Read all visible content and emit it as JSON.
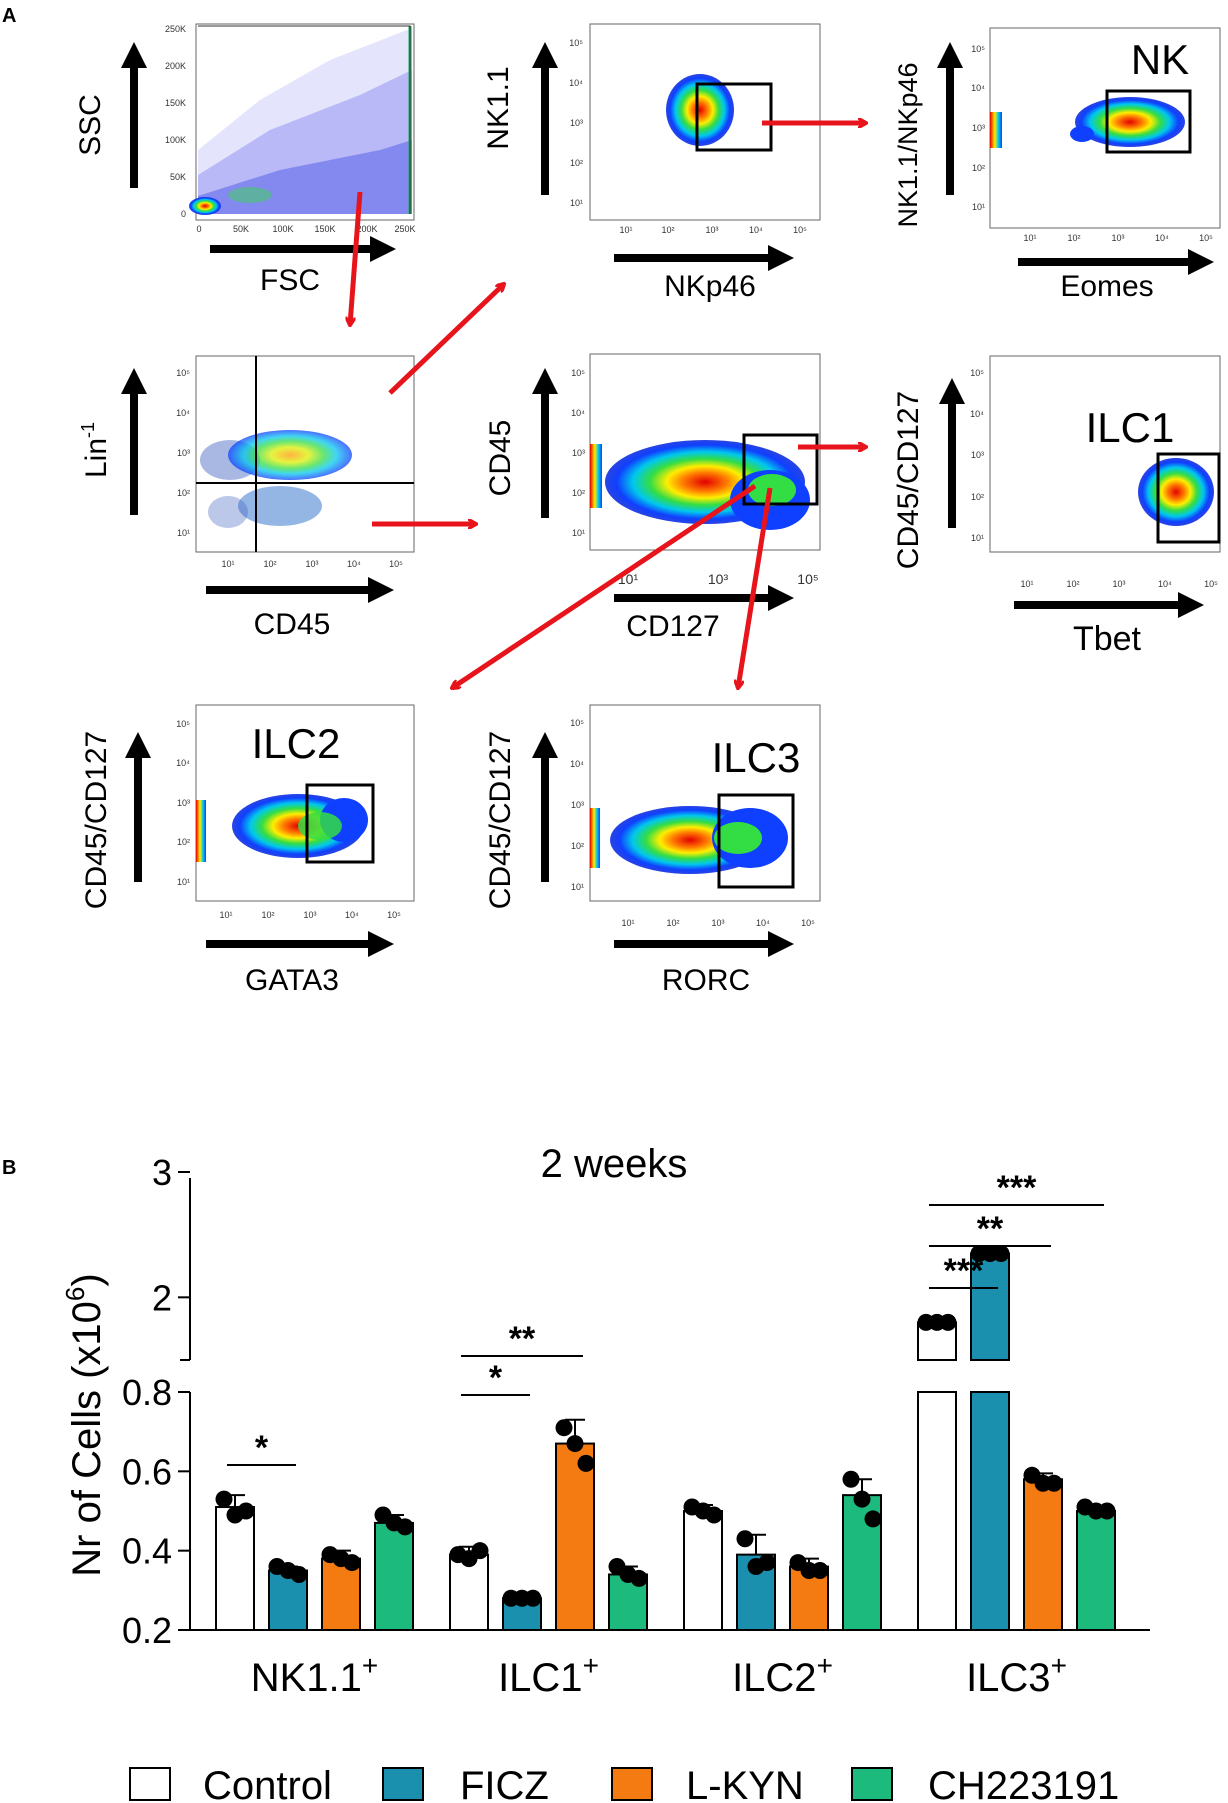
{
  "panel_a": {
    "label": "A",
    "plots": [
      {
        "id": "fsc-ssc",
        "x_label": "FSC",
        "y_label": "SSC",
        "gate_label": "",
        "x_ticks": [
          "0",
          "50K",
          "100K",
          "150K",
          "200K",
          "250K"
        ],
        "y_ticks": [
          "0",
          "50K",
          "100K",
          "150K",
          "200K",
          "250K"
        ]
      },
      {
        "id": "nk11-nkp46",
        "x_label": "NKp46",
        "y_label": "NK1.1",
        "gate_label": "",
        "x_ticks": [
          "10¹",
          "10²",
          "10³",
          "10⁴",
          "10⁵"
        ],
        "y_ticks": [
          "10¹",
          "10²",
          "10³",
          "10⁴",
          "10⁵"
        ]
      },
      {
        "id": "nk",
        "x_label": "Eomes",
        "y_label": "NK1.1/NKp46",
        "gate_label": "NK",
        "x_ticks": [
          "10¹",
          "10²",
          "10³",
          "10⁴",
          "10⁵"
        ],
        "y_ticks": [
          "10¹",
          "10²",
          "10³",
          "10⁴",
          "10⁵"
        ]
      },
      {
        "id": "lin-cd45",
        "x_label": "CD45",
        "y_label": "Lin",
        "y_label_sup": "-1",
        "gate_label": "",
        "x_ticks": [
          "10¹",
          "10²",
          "10³",
          "10⁴",
          "10⁵"
        ],
        "y_ticks": [
          "10¹",
          "10²",
          "10³",
          "10⁴",
          "10⁵"
        ]
      },
      {
        "id": "cd45-cd127",
        "x_label": "CD127",
        "y_label": "CD45",
        "gate_label": "",
        "x_ticks": [
          "10¹",
          "10³",
          "10⁵"
        ],
        "y_ticks": [
          "10¹",
          "10²",
          "10³",
          "10⁴",
          "10⁵"
        ]
      },
      {
        "id": "ilc1",
        "x_label": "Tbet",
        "y_label": "CD45/CD127",
        "gate_label": "ILC1",
        "x_ticks": [
          "10¹",
          "10²",
          "10³",
          "10⁴",
          "10⁵"
        ],
        "y_ticks": [
          "10¹",
          "10²",
          "10³",
          "10⁴",
          "10⁵"
        ]
      },
      {
        "id": "ilc2",
        "x_label": "GATA3",
        "y_label": "CD45/CD127",
        "gate_label": "ILC2",
        "x_ticks": [
          "10¹",
          "10²",
          "10³",
          "10⁴",
          "10⁵"
        ],
        "y_ticks": [
          "10¹",
          "10²",
          "10³",
          "10⁴",
          "10⁵"
        ]
      },
      {
        "id": "ilc3",
        "x_label": "RORC",
        "y_label": "CD45/CD127",
        "gate_label": "ILC3",
        "x_ticks": [
          "10¹",
          "10²",
          "10³",
          "10⁴",
          "10⁵"
        ],
        "y_ticks": [
          "10¹",
          "10²",
          "10³",
          "10⁴",
          "10⁵"
        ]
      }
    ]
  },
  "panel_b": {
    "label": "B"
  },
  "colors": {
    "control": "#ffffff",
    "ficz": "#1a8fae",
    "lkyn": "#f47a12",
    "ch223191": "#1dba7e",
    "arrow": "#e8141b"
  },
  "chart_data": {
    "type": "bar",
    "title": "2 weeks",
    "xlabel": "",
    "ylabel": "Nr of Cells (x10",
    "ylabel_sup": "6",
    "ylabel_end": ")",
    "ylim_lower": [
      0.2,
      0.8
    ],
    "ylim_upper": [
      1.5,
      3
    ],
    "yticks_lower": [
      "0.2",
      "0.4",
      "0.6",
      "0.8"
    ],
    "yticks_upper": [
      "2",
      "3"
    ],
    "categories": [
      "NK1.1",
      "ILC1",
      "ILC2",
      "ILC3"
    ],
    "category_sup": "+",
    "series": [
      {
        "name": "Control",
        "color": "#ffffff",
        "values": [
          0.51,
          0.39,
          0.5,
          1.8
        ],
        "errors": [
          0.03,
          0.02,
          0.015,
          0.02
        ],
        "points": [
          [
            0.53,
            0.49,
            0.5
          ],
          [
            0.39,
            0.38,
            0.4
          ],
          [
            0.51,
            0.5,
            0.49
          ],
          [
            1.8,
            1.8,
            1.8
          ]
        ]
      },
      {
        "name": "FICZ",
        "color": "#1a8fae",
        "values": [
          0.35,
          0.28,
          0.39,
          2.35
        ],
        "errors": [
          0.01,
          0.005,
          0.05,
          0.02
        ],
        "points": [
          [
            0.36,
            0.35,
            0.34
          ],
          [
            0.28,
            0.28,
            0.28
          ],
          [
            0.43,
            0.36,
            0.37
          ],
          [
            2.35,
            2.35,
            2.35
          ]
        ]
      },
      {
        "name": "L-KYN",
        "color": "#f47a12",
        "values": [
          0.38,
          0.67,
          0.36,
          0.58
        ],
        "errors": [
          0.02,
          0.06,
          0.02,
          0.015
        ],
        "points": [
          [
            0.39,
            0.38,
            0.37
          ],
          [
            0.71,
            0.67,
            0.62
          ],
          [
            0.37,
            0.35,
            0.35
          ],
          [
            0.59,
            0.57,
            0.57
          ]
        ]
      },
      {
        "name": "CH223191",
        "color": "#1dba7e",
        "values": [
          0.47,
          0.34,
          0.54,
          0.5
        ],
        "errors": [
          0.02,
          0.02,
          0.04,
          0.01
        ],
        "points": [
          [
            0.49,
            0.47,
            0.46
          ],
          [
            0.36,
            0.34,
            0.33
          ],
          [
            0.58,
            0.53,
            0.48
          ],
          [
            0.51,
            0.5,
            0.5
          ]
        ]
      }
    ],
    "significance": [
      {
        "category": "NK1.1",
        "from": "Control",
        "to": "FICZ",
        "label": "*"
      },
      {
        "category": "ILC1",
        "from": "Control",
        "to": "FICZ",
        "label": "*"
      },
      {
        "category": "ILC1",
        "from": "Control",
        "to": "L-KYN",
        "label": "**"
      },
      {
        "category": "ILC3",
        "from": "Control",
        "to": "FICZ",
        "label": "***"
      },
      {
        "category": "ILC3",
        "from": "Control",
        "to": "L-KYN",
        "label": "**"
      },
      {
        "category": "ILC3",
        "from": "Control",
        "to": "CH223191",
        "label": "***"
      }
    ]
  },
  "legend": {
    "items": [
      "Control",
      "FICZ",
      "L-KYN",
      "CH223191"
    ]
  }
}
